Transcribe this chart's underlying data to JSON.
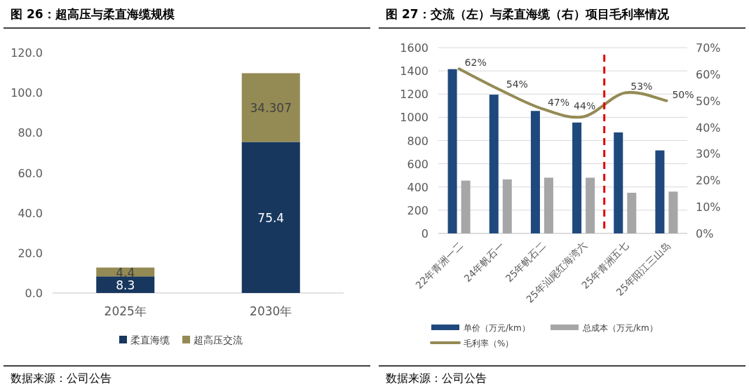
{
  "chart_data": [
    {
      "type": "bar",
      "title": "图 26：超高压与柔直海缆规模",
      "categories": [
        "2025年",
        "2030年"
      ],
      "stacked": true,
      "data_labels": true,
      "legend": "bottom",
      "grid": false,
      "ylim": [
        0,
        120
      ],
      "yticks": [
        {
          "value": 0,
          "label": "0.0"
        },
        {
          "value": 20,
          "label": "20.0"
        },
        {
          "value": 40,
          "label": "40.0"
        },
        {
          "value": 60,
          "label": "60.0"
        },
        {
          "value": 80,
          "label": "80.0"
        },
        {
          "value": 100,
          "label": "100.0"
        },
        {
          "value": 120,
          "label": "120.0"
        }
      ],
      "series": [
        {
          "name": "柔直海缆",
          "color": "#17375e",
          "values": [
            8.3,
            75.4
          ]
        },
        {
          "name": "超高压交流",
          "color": "#948a54",
          "values": [
            4.4,
            34.307
          ]
        }
      ],
      "annotations": [
        "数据来源：公司公告"
      ]
    },
    {
      "type": "bar",
      "title": "图 27：交流（左）与柔直海缆（右）项目毛利率情况",
      "categories": [
        "22年青洲一二",
        "24年帆石一",
        "25年帆石二",
        "25年汕尾红海湾六",
        "25年青洲五七",
        "25年阳江三山岛"
      ],
      "legend": "bottom",
      "grid": "y",
      "ylim": [
        0,
        1600
      ],
      "yticks": [
        0,
        200,
        400,
        600,
        800,
        1000,
        1200,
        1400,
        1600
      ],
      "y2lim": [
        0,
        70
      ],
      "y2ticks": [
        {
          "value": 0,
          "label": "0%"
        },
        {
          "value": 10,
          "label": "10%"
        },
        {
          "value": 20,
          "label": "20%"
        },
        {
          "value": 30,
          "label": "30%"
        },
        {
          "value": 40,
          "label": "40%"
        },
        {
          "value": 50,
          "label": "50%"
        },
        {
          "value": 60,
          "label": "60%"
        },
        {
          "value": 70,
          "label": "70%"
        }
      ],
      "series": [
        {
          "name": "单价（万元/km）",
          "color": "#1f497d",
          "values": [
            1415,
            1195,
            1055,
            955,
            870,
            715
          ]
        },
        {
          "name": "总成本（万元/km）",
          "color": "#a6a6a6",
          "values": [
            455,
            465,
            480,
            480,
            350,
            360
          ]
        },
        {
          "name": "毛利率（%）",
          "type": "line",
          "axis": "y2",
          "color": "#948a54",
          "values": [
            62,
            54,
            47,
            44,
            53,
            50
          ],
          "value_labels": [
            "62%",
            "54%",
            "47%",
            "44%",
            "53%",
            "50%"
          ]
        }
      ],
      "ref_lines": [
        {
          "axis": "x",
          "value": "25年汕尾红海湾六",
          "color": "#e00000",
          "line_style": "dashed"
        }
      ],
      "annotations": [
        "数据来源：公司公告"
      ]
    }
  ]
}
